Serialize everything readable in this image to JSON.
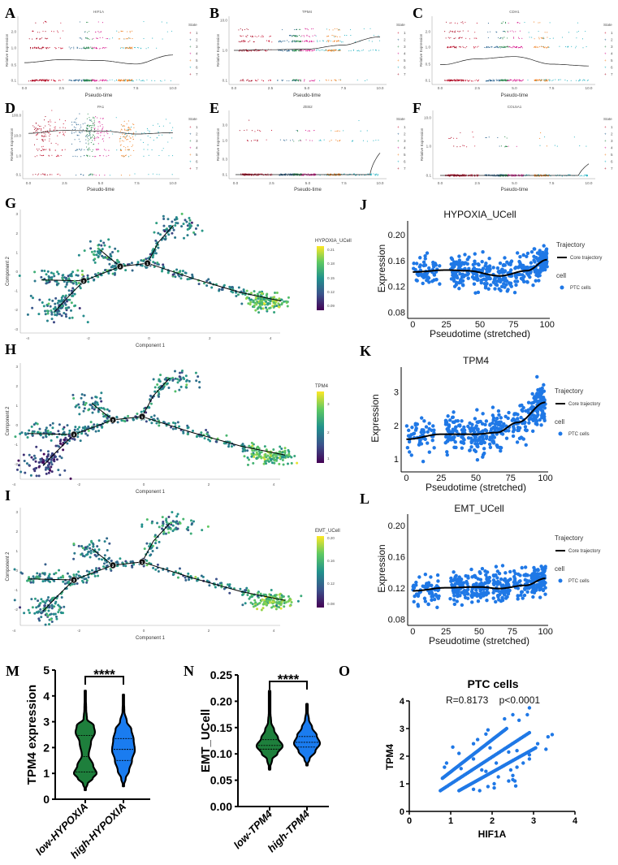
{
  "panel_letters": [
    "A",
    "B",
    "C",
    "D",
    "E",
    "F",
    "G",
    "H",
    "I",
    "J",
    "K",
    "L",
    "M",
    "N",
    "O"
  ],
  "chart_data": [
    {
      "id": "A",
      "type": "scatter",
      "title": "HIF1A",
      "xlabel": "Pseudo-time",
      "ylabel": "Relative Expression",
      "y_scale": "log",
      "x_ticks": [
        "0.0",
        "2.5",
        "5.0",
        "7.5",
        "10.0"
      ],
      "x_range": [
        0,
        10
      ],
      "y_ticks": [
        0.1,
        0.5,
        1.0,
        2.0
      ],
      "y_tick_labels": [
        "0.1",
        "0.5",
        "1.0",
        "2.0"
      ],
      "levels": [
        0.1,
        1.0,
        1.5,
        2.0,
        3.0
      ],
      "level_weights": [
        0.55,
        0.25,
        0.1,
        0.07,
        0.03
      ],
      "trend": {
        "x": [
          0,
          2.5,
          5,
          7.5,
          10
        ],
        "y": [
          0.55,
          0.62,
          0.6,
          0.52,
          0.75
        ]
      }
    },
    {
      "id": "B",
      "type": "scatter",
      "title": "TPM4",
      "xlabel": "Pseudo-time",
      "ylabel": "Relative Expression",
      "y_scale": "log",
      "x_ticks": [
        "0.0",
        "2.5",
        "5.0",
        "7.5",
        "10.0"
      ],
      "x_range": [
        0,
        10
      ],
      "y_ticks": [
        0.1,
        1.0,
        10.0
      ],
      "y_tick_labels": [
        "0.1",
        "1.0",
        "10.0"
      ],
      "levels": [
        0.1,
        1.0,
        2.0,
        3.0,
        5.0
      ],
      "level_weights": [
        0.2,
        0.4,
        0.22,
        0.12,
        0.06
      ],
      "trend": {
        "x": [
          0,
          2.5,
          5,
          7.5,
          10
        ],
        "y": [
          1.0,
          1.05,
          1.1,
          1.5,
          2.8
        ]
      }
    },
    {
      "id": "C",
      "type": "scatter",
      "title": "CDH1",
      "xlabel": "Pseudo-time",
      "ylabel": "Relative Expression",
      "y_scale": "log",
      "x_ticks": [
        "0.0",
        "2.5",
        "5.0",
        "7.5",
        "10.0"
      ],
      "x_range": [
        0,
        10
      ],
      "y_ticks": [
        0.1,
        0.5,
        1.0,
        2.0
      ],
      "y_tick_labels": [
        "0.1",
        "0.5",
        "1.0",
        "2.0"
      ],
      "levels": [
        0.1,
        1.0,
        1.5,
        2.0,
        3.0
      ],
      "level_weights": [
        0.55,
        0.25,
        0.1,
        0.07,
        0.03
      ],
      "trend": {
        "x": [
          0,
          2.5,
          5,
          7.5,
          10
        ],
        "y": [
          0.48,
          0.62,
          0.68,
          0.5,
          0.42
        ]
      }
    },
    {
      "id": "D",
      "type": "scatter",
      "title": "PA1",
      "xlabel": "Pseudo-time",
      "ylabel": "Relative Expression",
      "y_scale": "log",
      "x_ticks": [
        "0.0",
        "2.5",
        "5.0",
        "7.5",
        "10.0"
      ],
      "x_range": [
        0,
        10
      ],
      "y_ticks": [
        0.1,
        1.0,
        10.0,
        100.0
      ],
      "y_tick_labels": [
        "0.1",
        "1.0",
        "10.0",
        "100.0"
      ],
      "levels": [
        0.1,
        1.0,
        2.0,
        "cont"
      ],
      "level_weights": [
        0.08,
        0.1,
        0.1,
        0.72
      ],
      "trend": {
        "x": [
          0,
          2.5,
          5,
          7.5,
          10
        ],
        "y": [
          13,
          18,
          17,
          12,
          14
        ]
      }
    },
    {
      "id": "E",
      "type": "scatter",
      "title": "ZEB2",
      "xlabel": "Pseudo-time",
      "ylabel": "Relative Expression",
      "y_scale": "log",
      "x_ticks": [
        "0.0",
        "2.5",
        "5.0",
        "7.5",
        "10.0"
      ],
      "x_range": [
        0,
        10
      ],
      "y_ticks": [
        0.1,
        0.3,
        1.0,
        3.0
      ],
      "y_tick_labels": [
        "0.1",
        "0.3",
        "1.0",
        "3.0"
      ],
      "levels": [
        0.1,
        1.0,
        2.0,
        4.0
      ],
      "level_weights": [
        0.88,
        0.07,
        0.04,
        0.01
      ],
      "trend": {
        "x": [
          0,
          9.3,
          10
        ],
        "y": [
          0.1,
          0.1,
          0.45
        ]
      }
    },
    {
      "id": "F",
      "type": "scatter",
      "title": "COL5A1",
      "xlabel": "Pseudo-time",
      "ylabel": "Relative Expression",
      "y_scale": "log",
      "x_ticks": [
        "0.0",
        "2.5",
        "5.0",
        "7.5",
        "10.0"
      ],
      "x_range": [
        0,
        10
      ],
      "y_ticks": [
        0.1,
        1.0,
        10.0
      ],
      "y_tick_labels": [
        "0.1",
        "1.0",
        "10.0"
      ],
      "levels": [
        0.1,
        1.0,
        2.0,
        3.0
      ],
      "level_weights": [
        0.92,
        0.05,
        0.02,
        0.01
      ],
      "trend": {
        "x": [
          0,
          9.3,
          10
        ],
        "y": [
          0.1,
          0.1,
          0.25
        ]
      }
    },
    {
      "id": "G",
      "type": "scatter",
      "subtype": "trajectory",
      "xlabel": "Component 1",
      "ylabel": "Component 2",
      "x_ticks": [
        -4,
        -2,
        0,
        2,
        4
      ],
      "y_ticks": [
        -3,
        -2,
        -1,
        0,
        1,
        2,
        3
      ],
      "color_title": "HYPOXIA_UCell",
      "color_ticks": [
        "0.21",
        "0.18",
        "0.15",
        "0.12",
        "0.09"
      ],
      "color_range": [
        0.08,
        0.22
      ]
    },
    {
      "id": "H",
      "type": "scatter",
      "subtype": "trajectory",
      "xlabel": "Component 1",
      "ylabel": "Component 2",
      "x_ticks": [
        -4,
        -2,
        0,
        2,
        4
      ],
      "y_ticks": [
        -2,
        -1,
        0,
        1,
        2,
        3
      ],
      "color_title": "TPM4",
      "color_ticks": [
        "3",
        "2",
        "1"
      ],
      "color_range": [
        0.6,
        3.7
      ]
    },
    {
      "id": "I",
      "type": "scatter",
      "subtype": "trajectory",
      "xlabel": "Component 1",
      "ylabel": "Component 2",
      "x_ticks": [
        -4,
        -2,
        0,
        2,
        4
      ],
      "y_ticks": [
        -2,
        -1,
        0,
        1,
        2,
        3
      ],
      "color_title": "EMT_UCell",
      "color_ticks": [
        "0.20",
        "0.16",
        "0.12",
        "0.08"
      ],
      "color_range": [
        0.06,
        0.215
      ]
    },
    {
      "id": "J",
      "type": "scatter",
      "title": "HYPOXIA_UCell",
      "xlabel": "Pseudotime (stretched)",
      "ylabel": "Expression",
      "x_ticks": [
        "0",
        "25",
        "50",
        "75",
        "100"
      ],
      "y_ticks": [
        "0.08",
        "0.12",
        "0.16",
        "0.20"
      ],
      "x_range": [
        0,
        100
      ],
      "y_range": [
        0.075,
        0.222
      ],
      "trend": {
        "x": [
          0,
          25,
          40,
          65,
          85,
          100
        ],
        "y": [
          0.143,
          0.146,
          0.145,
          0.137,
          0.145,
          0.162
        ]
      },
      "noise": 0.022
    },
    {
      "id": "K",
      "type": "scatter",
      "title": "TPM4",
      "xlabel": "Pseudotime (stretched)",
      "ylabel": "Expression",
      "x_ticks": [
        "0",
        "25",
        "50",
        "75",
        "100"
      ],
      "y_ticks": [
        "1",
        "2",
        "3"
      ],
      "x_range": [
        0,
        100
      ],
      "y_range": [
        0.7,
        3.75
      ],
      "trend": {
        "x": [
          0,
          25,
          50,
          65,
          80,
          100
        ],
        "y": [
          1.6,
          1.75,
          1.75,
          1.8,
          2.1,
          2.7
        ]
      },
      "noise": 0.55
    },
    {
      "id": "L",
      "type": "scatter",
      "title": "EMT_UCell",
      "xlabel": "Pseudotime (stretched)",
      "ylabel": "Expression",
      "x_ticks": [
        "0",
        "25",
        "50",
        "75",
        "100"
      ],
      "y_ticks": [
        "0.08",
        "0.12",
        "0.16",
        "0.20"
      ],
      "x_range": [
        0,
        100
      ],
      "y_range": [
        0.076,
        0.215
      ],
      "trend": {
        "x": [
          0,
          25,
          50,
          65,
          85,
          100
        ],
        "y": [
          0.117,
          0.121,
          0.122,
          0.12,
          0.124,
          0.133
        ]
      },
      "noise": 0.018
    },
    {
      "id": "M",
      "type": "violin",
      "ylabel": "TPM4 expression",
      "y_ticks": [
        "0",
        "1",
        "2",
        "3",
        "4",
        "5"
      ],
      "y_range": [
        0,
        5
      ],
      "significance": "****",
      "groups": [
        {
          "name": "low-HYPOXIA",
          "color": "#1e7f3c",
          "quartiles": [
            1.05,
            1.65,
            2.47
          ],
          "density": [
            [
              0.35,
              0
            ],
            [
              0.6,
              0.2
            ],
            [
              0.8,
              0.65
            ],
            [
              1.0,
              1.0
            ],
            [
              1.3,
              0.7
            ],
            [
              1.7,
              0.3
            ],
            [
              2.2,
              0.5
            ],
            [
              2.6,
              0.85
            ],
            [
              2.85,
              0.75
            ],
            [
              3.1,
              0.15
            ],
            [
              3.5,
              0.08
            ],
            [
              4.2,
              0
            ]
          ]
        },
        {
          "name": "high-HYPOXIA",
          "color": "#1a7cf0",
          "quartiles": [
            1.5,
            1.93,
            2.35
          ],
          "density": [
            [
              0.5,
              0
            ],
            [
              0.8,
              0.2
            ],
            [
              1.1,
              0.5
            ],
            [
              1.5,
              0.75
            ],
            [
              1.9,
              1.0
            ],
            [
              2.3,
              0.9
            ],
            [
              2.7,
              0.7
            ],
            [
              3.0,
              0.3
            ],
            [
              3.4,
              0.08
            ],
            [
              4.05,
              0
            ]
          ]
        }
      ]
    },
    {
      "id": "N",
      "type": "violin",
      "ylabel": "EMT_UCell",
      "y_ticks": [
        "0.00",
        "0.05",
        "0.10",
        "0.15",
        "0.20",
        "0.25"
      ],
      "y_range": [
        0,
        0.25
      ],
      "significance": "****",
      "groups": [
        {
          "name": "low-TPM4",
          "color": "#1e7f3c",
          "quartiles": [
            0.109,
            0.116,
            0.127
          ],
          "density": [
            [
              0.07,
              0
            ],
            [
              0.09,
              0.2
            ],
            [
              0.1,
              0.6
            ],
            [
              0.115,
              1.0
            ],
            [
              0.13,
              0.65
            ],
            [
              0.145,
              0.35
            ],
            [
              0.16,
              0.12
            ],
            [
              0.18,
              0.06
            ],
            [
              0.22,
              0
            ]
          ]
        },
        {
          "name": "high-TPM4",
          "color": "#1a7cf0",
          "quartiles": [
            0.113,
            0.122,
            0.133
          ],
          "density": [
            [
              0.078,
              0
            ],
            [
              0.09,
              0.2
            ],
            [
              0.105,
              0.65
            ],
            [
              0.12,
              1.0
            ],
            [
              0.135,
              0.75
            ],
            [
              0.15,
              0.4
            ],
            [
              0.165,
              0.15
            ],
            [
              0.18,
              0.06
            ],
            [
              0.195,
              0
            ]
          ]
        }
      ]
    },
    {
      "id": "O",
      "type": "scatter",
      "title": "PTC cells",
      "annotation": "R=0.8173    p<0.0001",
      "xlabel": "HIF1A",
      "ylabel": "TPM4",
      "x_ticks": [
        "0",
        "1",
        "2",
        "3",
        "4"
      ],
      "y_ticks": [
        "0",
        "1",
        "2",
        "3",
        "4"
      ],
      "x_range": [
        0,
        4
      ],
      "y_range": [
        0,
        4
      ],
      "bands": [
        {
          "x": [
            0.75,
            2.9
          ],
          "y": [
            0.75,
            2.85
          ]
        },
        {
          "x": [
            0.8,
            2.35
          ],
          "y": [
            1.2,
            3.0
          ]
        },
        {
          "x": [
            1.2,
            3.05
          ],
          "y": [
            0.75,
            2.3
          ]
        }
      ],
      "points": [
        [
          1.05,
          2.33
        ],
        [
          0.9,
          1.75
        ],
        [
          0.85,
          1.6
        ],
        [
          1.2,
          2.1
        ],
        [
          1.25,
          1.55
        ],
        [
          1.55,
          2.45
        ],
        [
          1.65,
          2.6
        ],
        [
          1.9,
          2.95
        ],
        [
          1.85,
          2.8
        ],
        [
          1.55,
          1.9
        ],
        [
          1.95,
          2.3
        ],
        [
          2.3,
          3.35
        ],
        [
          2.5,
          3.5
        ],
        [
          2.65,
          3.3
        ],
        [
          2.85,
          3.5
        ],
        [
          2.9,
          3.75
        ],
        [
          2.4,
          2.15
        ],
        [
          2.1,
          1.75
        ],
        [
          1.75,
          1.5
        ],
        [
          1.85,
          1.45
        ],
        [
          2.05,
          1.0
        ],
        [
          2.05,
          0.85
        ],
        [
          2.15,
          1.25
        ],
        [
          1.55,
          0.8
        ],
        [
          1.7,
          0.75
        ],
        [
          1.9,
          0.9
        ],
        [
          2.4,
          1.1
        ],
        [
          2.5,
          1.3
        ],
        [
          2.5,
          1.15
        ],
        [
          2.55,
          1.1
        ],
        [
          2.57,
          0.92
        ],
        [
          2.6,
          1.6
        ],
        [
          2.6,
          2.2
        ],
        [
          2.75,
          1.75
        ],
        [
          2.9,
          1.9
        ],
        [
          2.9,
          2.05
        ],
        [
          3.1,
          2.45
        ],
        [
          3.3,
          2.25
        ],
        [
          3.35,
          2.7
        ],
        [
          3.45,
          2.78
        ],
        [
          2.45,
          1.5
        ]
      ]
    }
  ],
  "states": {
    "title": "State",
    "items": [
      {
        "label": "1",
        "color": "#c8102e"
      },
      {
        "label": "2",
        "color": "#235e8c"
      },
      {
        "label": "3",
        "color": "#2b8a4b"
      },
      {
        "label": "4",
        "color": "#d6198e"
      },
      {
        "label": "5",
        "color": "#f07d1c"
      },
      {
        "label": "6",
        "color": "#1fb0c0"
      },
      {
        "label": "7",
        "color": "#a3001a"
      }
    ],
    "segments": [
      [
        0.5,
        2.6,
        0
      ],
      [
        3.0,
        4.3,
        1
      ],
      [
        4.0,
        4.6,
        2
      ],
      [
        4.5,
        5.6,
        3
      ],
      [
        6.3,
        7.3,
        4
      ],
      [
        5.6,
        10,
        5
      ],
      [
        0.3,
        1.6,
        6
      ]
    ]
  },
  "trajectory_legend": {
    "title": "Trajectory",
    "line_label": "Core trajectory",
    "cell_title": "cell",
    "cell_label": "PTC cells"
  },
  "trajectory_nodes": [
    "1",
    "2",
    "3"
  ],
  "colors": {
    "point_blue": "#1f78e6",
    "green": "#1e7f3c",
    "blue": "#1a7cf0"
  }
}
